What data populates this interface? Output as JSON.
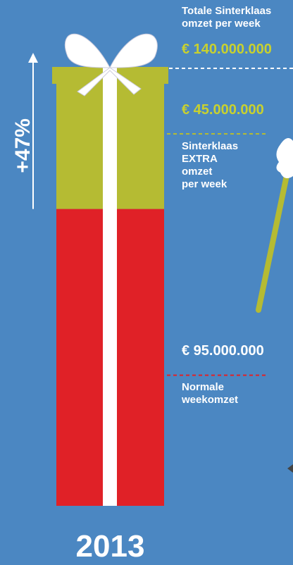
{
  "chart_data": {
    "type": "stacked-bar",
    "categories": [
      "2013"
    ],
    "series": [
      {
        "name": "Normale\nweekomzet",
        "color": "#e02127",
        "label_color": "#ffffff",
        "values": [
          95000000
        ],
        "value_labels": [
          "€ 95.000.000"
        ]
      },
      {
        "name": "Sinterklaas\nEXTRA\nomzet\nper week",
        "color": "#b5bb33",
        "label_color": "#c8d12f",
        "values": [
          45000000
        ],
        "value_labels": [
          "€ 45.000.000"
        ]
      }
    ],
    "total": {
      "name": "Totale Sinterklaas\nomzet per week",
      "value": 140000000,
      "label": "€ 140.000.000"
    },
    "growth_label": "+47%"
  }
}
